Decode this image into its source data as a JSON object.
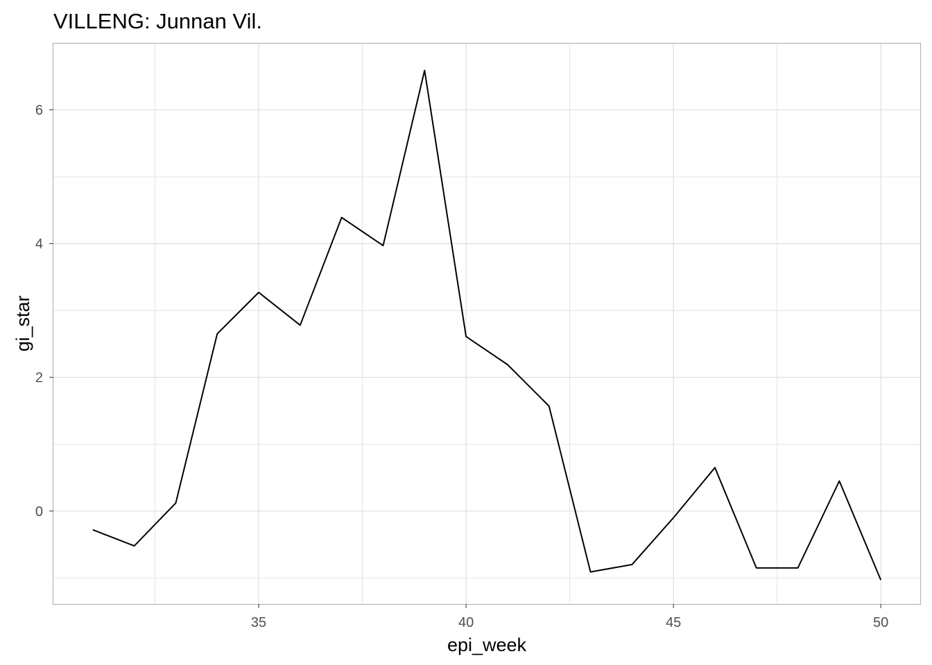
{
  "chart_data": {
    "type": "line",
    "title": "VILLENG: Junnan Vil.",
    "xlabel": "epi_week",
    "ylabel": "gi_star",
    "xlim": [
      30.05,
      50.95
    ],
    "ylim": [
      -1.39,
      6.99
    ],
    "x_ticks": [
      35,
      40,
      45,
      50
    ],
    "x_tick_labels": [
      "35",
      "40",
      "45",
      "50"
    ],
    "x_minor_ticks": [
      32.5,
      37.5,
      42.5,
      47.5
    ],
    "y_ticks": [
      0,
      2,
      4,
      6
    ],
    "y_tick_labels": [
      "0",
      "2",
      "4",
      "6"
    ],
    "y_minor_ticks": [
      -1,
      1,
      3,
      5
    ],
    "grid": true,
    "series": [
      {
        "color": "#000000",
        "x": [
          31,
          32,
          33,
          34,
          35,
          36,
          37,
          38,
          39,
          40,
          41,
          42,
          43,
          44,
          45,
          46,
          47,
          48,
          49,
          50
        ],
        "y": [
          -0.28,
          -0.52,
          0.12,
          2.65,
          3.27,
          2.78,
          4.39,
          3.97,
          6.59,
          2.61,
          2.19,
          1.57,
          -0.91,
          -0.8,
          -0.1,
          0.65,
          -0.85,
          -0.85,
          0.45,
          -1.03
        ]
      }
    ],
    "colors": {
      "panel_border": "#b3b3b3",
      "grid": "#dedede",
      "line": "#000000"
    }
  }
}
